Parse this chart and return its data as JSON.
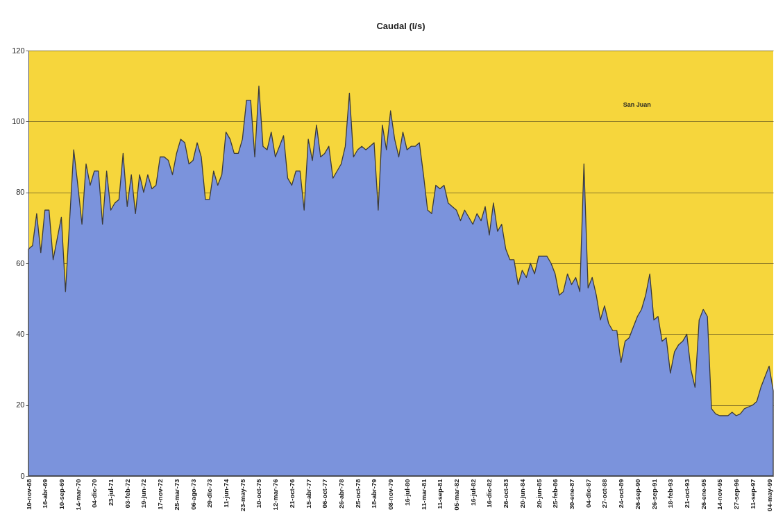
{
  "chart_data": {
    "type": "area",
    "title": "Caudal (l/s)",
    "categories": [
      "10-nov-68",
      null,
      null,
      null,
      "16-abr-69",
      null,
      null,
      null,
      "10-sep-69",
      null,
      null,
      null,
      "14-mar-70",
      null,
      null,
      null,
      "04-dic-70",
      null,
      null,
      null,
      "23-jul-71",
      null,
      null,
      null,
      "03-feb-72",
      null,
      null,
      null,
      "19-jun-72",
      null,
      null,
      null,
      "17-nov-72",
      null,
      null,
      null,
      "25-mar-73",
      null,
      null,
      null,
      "06-ago-73",
      null,
      null,
      null,
      "29-dic-73",
      null,
      null,
      null,
      "11-jun-74",
      null,
      null,
      null,
      "23-may-75",
      null,
      null,
      null,
      "10-oct-75",
      null,
      null,
      null,
      "12-mar-76",
      null,
      null,
      null,
      "21-oct-76",
      null,
      null,
      null,
      "15-abr-77",
      null,
      null,
      null,
      "06-oct-77",
      null,
      null,
      null,
      "26-abr-78",
      null,
      null,
      null,
      "25-oct-78",
      null,
      null,
      null,
      "18-abr-79",
      null,
      null,
      null,
      "08-nov-79",
      null,
      null,
      null,
      "16-jul-80",
      null,
      null,
      null,
      "11-mar-81",
      null,
      null,
      null,
      "11-sep-81",
      null,
      null,
      null,
      "05-mar-82",
      null,
      null,
      null,
      "16-jul-82",
      null,
      null,
      null,
      "16-dic-82",
      null,
      null,
      null,
      "26-oct-83",
      null,
      null,
      null,
      "20-jun-84",
      null,
      null,
      null,
      "20-jun-85",
      null,
      null,
      null,
      "25-feb-86",
      null,
      null,
      null,
      "30-ene-87",
      null,
      null,
      null,
      "04-dic-87",
      null,
      null,
      null,
      "27-oct-88",
      null,
      null,
      null,
      "24-oct-89",
      null,
      null,
      null,
      "26-sep-90",
      null,
      null,
      null,
      "26-sep-91",
      null,
      null,
      null,
      "18-feb-93",
      null,
      null,
      null,
      "21-oct-93",
      null,
      null,
      null,
      "26-ene-95",
      null,
      null,
      null,
      "14-nov-95",
      null,
      null,
      null,
      "27-sep-96",
      null,
      null,
      null,
      "11-sep-97",
      null,
      null,
      null,
      "04-may-99",
      null
    ],
    "series": [
      {
        "name": "San Juan",
        "color": "#7b93dc",
        "values": [
          64,
          65,
          74,
          63,
          75,
          75,
          61,
          67,
          73,
          52,
          72,
          92,
          82,
          71,
          88,
          82,
          86,
          86,
          71,
          86,
          75,
          77,
          78,
          91,
          76,
          85,
          74,
          85,
          80,
          85,
          81,
          82,
          90,
          90,
          89,
          85,
          91,
          95,
          94,
          88,
          89,
          94,
          90,
          78,
          78,
          86,
          82,
          85,
          97,
          95,
          91,
          91,
          95,
          106,
          106,
          90,
          110,
          93,
          92,
          97,
          90,
          93,
          96,
          84,
          82,
          86,
          86,
          75,
          95,
          89,
          99,
          90,
          91,
          93,
          84,
          86,
          88,
          93,
          108,
          90,
          92,
          93,
          92,
          93,
          94,
          75,
          99,
          92,
          103,
          95,
          90,
          97,
          92,
          93,
          93,
          94,
          85,
          75,
          74,
          82,
          81,
          82,
          77,
          76,
          75,
          72,
          75,
          73,
          71,
          74,
          72,
          76,
          68,
          77,
          69,
          71,
          64,
          61,
          61,
          54,
          58,
          56,
          60,
          57,
          62,
          62,
          62,
          60,
          57,
          51,
          52,
          57,
          54,
          56,
          52,
          88,
          53,
          56,
          51,
          44,
          48,
          43,
          41,
          41,
          32,
          38,
          39,
          42,
          45,
          47,
          51,
          57,
          44,
          45,
          38,
          39,
          29,
          35,
          37,
          38,
          40,
          30,
          25,
          44,
          47,
          45,
          19,
          17.5,
          17,
          17,
          17,
          18,
          17,
          17.5,
          19,
          19.5,
          20,
          21,
          25,
          28,
          31,
          24
        ]
      }
    ],
    "ylim": [
      0,
      120
    ],
    "yticks": [
      0,
      20,
      40,
      60,
      80,
      100,
      120
    ],
    "grid": "y",
    "legend": "top right"
  }
}
